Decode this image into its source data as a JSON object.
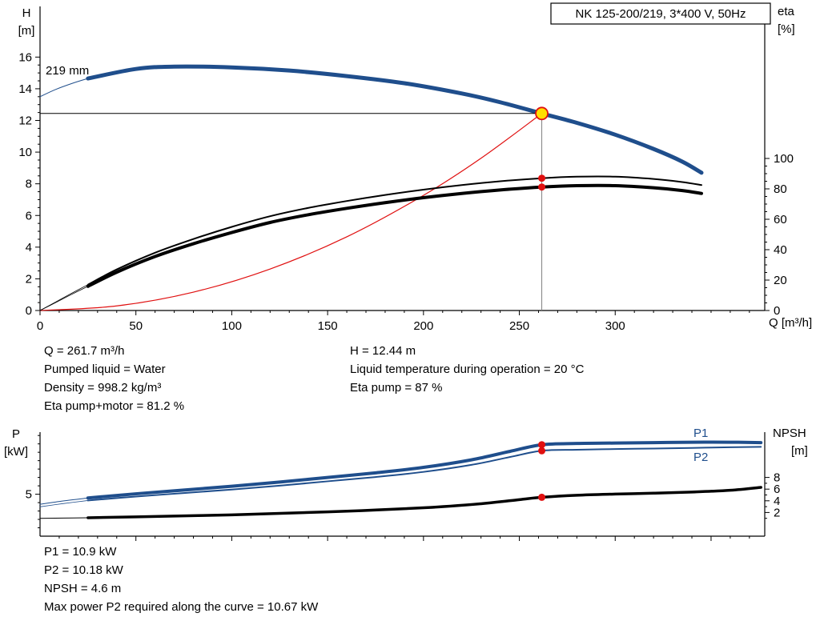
{
  "colors": {
    "curve_blue": "#1f4e8c",
    "curve_black": "#000000",
    "system_red": "#e01010",
    "marker_red": "#e01010",
    "duty_fill": "#ffdf00",
    "crosshair_gray": "#808080",
    "axis": "#000000"
  },
  "details": {
    "flow": "Q = 261.7 m³/h",
    "head": "H = 12.44 m",
    "pumped_liquid": "Pumped liquid = Water",
    "liquid_temperature": "Liquid temperature during operation = 20 °C",
    "density": "Density = 998.2 kg/m³",
    "eta_pump": "Eta pump = 87 %",
    "eta_pump_motor": "Eta pump+motor = 81.2 %"
  },
  "power_details": {
    "p1": "P1 = 10.9 kW",
    "p2": "P2 = 10.18 kW",
    "npsh": "NPSH = 4.6 m",
    "max_p2": "Max power P2 required along the curve = 10.67 kW"
  },
  "chart_data": [
    {
      "type": "line",
      "name": "qh-efficiency-chart",
      "title": "NK 125-200/219, 3*400 V, 50Hz",
      "xlabel": "Q [m³/h]",
      "ylabel_left": [
        "H",
        "[m]"
      ],
      "ylabel_right": [
        "eta",
        "[%]"
      ],
      "xlim": [
        0,
        378
      ],
      "ylim_left": [
        0,
        19.2
      ],
      "ylim_right": [
        0,
        200
      ],
      "x_ticks": [
        0,
        50,
        100,
        150,
        200,
        250,
        300
      ],
      "x_minor_step": 10,
      "show_x_labels": true,
      "y_ticks_left": [
        0,
        2,
        4,
        6,
        8,
        10,
        12,
        14,
        16
      ],
      "y_minor_left": 0.5,
      "left_minor_max": 16,
      "y_ticks_right": [
        0,
        20,
        40,
        60,
        80,
        100
      ],
      "y_minor_right": 5,
      "right_minor_max": 100,
      "impeller_label": "219 mm",
      "series": [
        {
          "name": "head-curve-lead",
          "axis": "left",
          "color": "#1f4e8c",
          "width": 1,
          "x": [
            0,
            8,
            17,
            25
          ],
          "y": [
            13.5,
            13.95,
            14.35,
            14.65
          ]
        },
        {
          "name": "head-curve-219mm",
          "label": "219 mm",
          "axis": "left",
          "color": "#1f4e8c",
          "width": 5,
          "x": [
            25,
            50,
            70,
            100,
            130,
            160,
            190,
            220,
            240,
            261.7,
            280,
            300,
            320,
            335,
            345
          ],
          "y": [
            14.65,
            15.25,
            15.4,
            15.35,
            15.15,
            14.8,
            14.35,
            13.7,
            13.15,
            12.44,
            11.85,
            11.1,
            10.2,
            9.4,
            8.7
          ]
        },
        {
          "name": "system-curve",
          "axis": "left",
          "color": "#e01010",
          "width": 1.2,
          "x": [
            0,
            40,
            80,
            120,
            160,
            200,
            230,
            261.7
          ],
          "y": [
            0,
            0.29,
            1.16,
            2.62,
            4.65,
            7.27,
            9.61,
            12.44
          ]
        },
        {
          "name": "eta-pump-lead",
          "axis": "right",
          "color": "#000000",
          "width": 0.8,
          "x": [
            0,
            8,
            16,
            25
          ],
          "y": [
            0,
            5.5,
            11,
            17
          ]
        },
        {
          "name": "eta-pump-motor-lead",
          "axis": "right",
          "color": "#000000",
          "width": 0.8,
          "x": [
            0,
            8,
            16,
            25
          ],
          "y": [
            0,
            5.1,
            10.3,
            15.9
          ]
        },
        {
          "name": "eta-pump-curve",
          "axis": "right",
          "color": "#000000",
          "width": 2,
          "x": [
            25,
            40,
            60,
            80,
            100,
            120,
            140,
            160,
            180,
            200,
            220,
            240,
            261.7,
            280,
            300,
            320,
            335,
            345
          ],
          "y": [
            17,
            27,
            38,
            47,
            55,
            62,
            67.5,
            72,
            76,
            79.5,
            82.5,
            85,
            87,
            88,
            88,
            86.5,
            84.5,
            82.5
          ]
        },
        {
          "name": "eta-pump-motor-curve",
          "axis": "right",
          "color": "#000000",
          "width": 4,
          "x": [
            25,
            40,
            60,
            80,
            100,
            120,
            140,
            160,
            180,
            200,
            220,
            240,
            261.7,
            280,
            300,
            320,
            335,
            345
          ],
          "y": [
            15.9,
            25.2,
            35.5,
            43.9,
            51.3,
            57.9,
            63,
            67.2,
            70.9,
            74.2,
            77,
            79.3,
            81.2,
            82.1,
            82.1,
            80.7,
            78.9,
            77
          ]
        }
      ],
      "duty_point": {
        "q": 261.7,
        "h": 12.44
      },
      "markers": [
        {
          "name": "duty-point-marker",
          "q": 261.7,
          "v": 12.44,
          "axis": "left",
          "style": "duty"
        },
        {
          "name": "eta-pump-dot",
          "q": 261.7,
          "v": 87,
          "axis": "right",
          "style": "dot"
        },
        {
          "name": "eta-pump-motor-dot",
          "q": 261.7,
          "v": 81.2,
          "axis": "right",
          "style": "dot"
        }
      ]
    },
    {
      "type": "line",
      "name": "power-npsh-chart",
      "title": "",
      "xlabel": "",
      "ylabel_left": [
        "P",
        "[kW]"
      ],
      "ylabel_right": [
        "NPSH",
        "[m]"
      ],
      "xlim": [
        0,
        378
      ],
      "ylim_left": [
        0,
        12.4
      ],
      "ylim_right": [
        0,
        8
      ],
      "x_ticks": [
        50,
        100,
        150,
        200,
        250,
        300,
        350
      ],
      "x_minor_step": 10,
      "show_x_labels": false,
      "y_ticks_left": [
        5
      ],
      "y_minor_left": 1,
      "left_minor_max": 12,
      "y_ticks_right": [
        2,
        4,
        6,
        8
      ],
      "y_minor_right": 1,
      "right_minor_max": 8,
      "series": [
        {
          "name": "p1-curve-lead",
          "axis": "left",
          "color": "#1f4e8c",
          "width": 1,
          "x": [
            0,
            12,
            25
          ],
          "y": [
            3.8,
            4.2,
            4.55
          ]
        },
        {
          "name": "p2-curve-lead",
          "axis": "left",
          "color": "#1f4e8c",
          "width": 0.8,
          "x": [
            0,
            12,
            25
          ],
          "y": [
            3.5,
            3.88,
            4.25
          ]
        },
        {
          "name": "npsh-curve-lead",
          "axis": "right",
          "color": "#000000",
          "width": 1,
          "x": [
            0,
            12,
            25
          ],
          "y": [
            1.0,
            1.05,
            1.1
          ]
        },
        {
          "name": "p1-curve",
          "label": "P1",
          "axis": "left",
          "color": "#1f4e8c",
          "width": 4,
          "x": [
            25,
            50,
            75,
            100,
            125,
            150,
            175,
            200,
            225,
            245,
            261.7,
            280,
            300,
            320,
            340,
            360,
            376
          ],
          "y": [
            4.55,
            5.05,
            5.5,
            5.95,
            6.45,
            7.0,
            7.55,
            8.2,
            9.1,
            10.1,
            10.9,
            11.05,
            11.1,
            11.15,
            11.2,
            11.2,
            11.15
          ]
        },
        {
          "name": "p2-curve",
          "label": "P2",
          "axis": "left",
          "color": "#1f4e8c",
          "width": 2,
          "x": [
            25,
            50,
            75,
            100,
            125,
            150,
            175,
            200,
            225,
            245,
            261.7,
            280,
            300,
            320,
            340,
            360,
            376
          ],
          "y": [
            4.25,
            4.72,
            5.14,
            5.56,
            6.02,
            6.54,
            7.05,
            7.66,
            8.5,
            9.43,
            10.18,
            10.3,
            10.38,
            10.45,
            10.52,
            10.6,
            10.65
          ]
        },
        {
          "name": "npsh-curve",
          "axis": "right",
          "color": "#000000",
          "width": 3.5,
          "x": [
            25,
            50,
            100,
            150,
            200,
            230,
            250,
            261.7,
            280,
            300,
            320,
            340,
            360,
            376
          ],
          "y": [
            1.1,
            1.25,
            1.6,
            2.1,
            2.8,
            3.5,
            4.2,
            4.6,
            4.95,
            5.15,
            5.3,
            5.5,
            5.8,
            6.3
          ]
        }
      ],
      "markers": [
        {
          "name": "p1-dot",
          "q": 261.7,
          "v": 10.9,
          "axis": "left",
          "style": "dot"
        },
        {
          "name": "p2-dot",
          "q": 261.7,
          "v": 10.18,
          "axis": "left",
          "style": "dot"
        },
        {
          "name": "npsh-dot",
          "q": 261.7,
          "v": 4.6,
          "axis": "right",
          "style": "dot"
        }
      ]
    }
  ]
}
